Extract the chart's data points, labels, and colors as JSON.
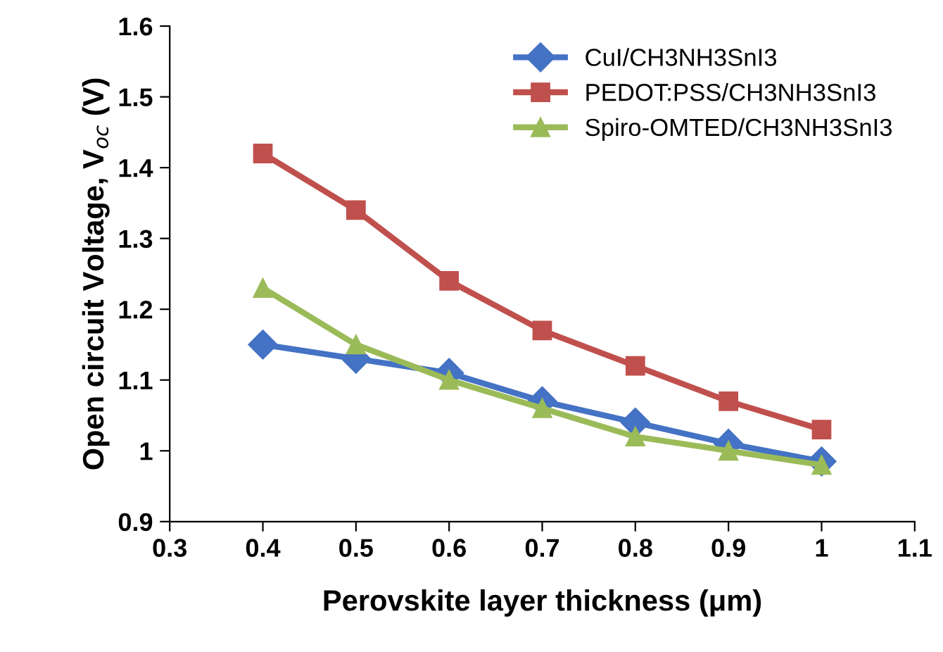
{
  "chart_data": {
    "type": "line",
    "xlabel": "Perovskite layer thickness (μm)",
    "ylabel": "Open circuit Voltage, V$_{oc}$ (V)",
    "x": [
      0.4,
      0.5,
      0.6,
      0.7,
      0.8,
      0.9,
      1.0
    ],
    "series": [
      {
        "name": "CuI/CH3NH3SnI3",
        "color": "#4472c4",
        "marker": "diamond",
        "values": [
          1.15,
          1.13,
          1.11,
          1.07,
          1.04,
          1.01,
          0.985
        ]
      },
      {
        "name": "PEDOT:PSS/CH3NH3SnI3",
        "color": "#c0504d",
        "marker": "square",
        "values": [
          1.42,
          1.34,
          1.24,
          1.17,
          1.12,
          1.07,
          1.03
        ]
      },
      {
        "name": "Spiro-OMTED/CH3NH3SnI3",
        "color": "#9bbb59",
        "marker": "triangle",
        "values": [
          1.23,
          1.15,
          1.1,
          1.06,
          1.02,
          1.0,
          0.98
        ]
      }
    ],
    "xlim": [
      0.3,
      1.1
    ],
    "xticks": [
      0.3,
      0.4,
      0.5,
      0.6,
      0.7,
      0.8,
      0.9,
      1,
      1.1
    ],
    "ylim": [
      0.9,
      1.6
    ],
    "yticks": [
      0.9,
      1,
      1.1,
      1.2,
      1.3,
      1.4,
      1.5,
      1.6
    ],
    "grid": false,
    "legend": "top right",
    "line_style": "solid"
  }
}
